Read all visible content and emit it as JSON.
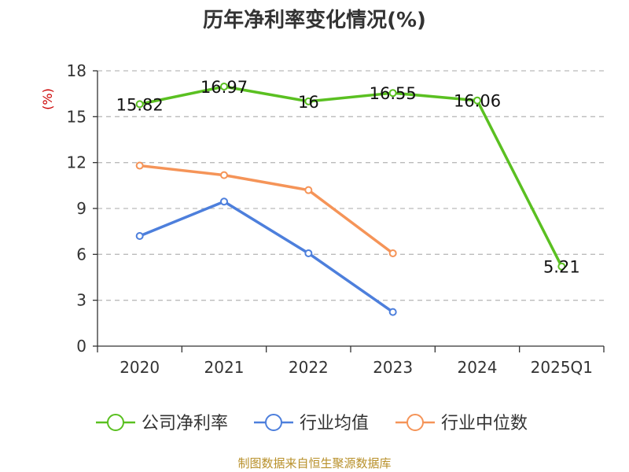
{
  "chart_data": {
    "type": "line",
    "title": "历年净利率变化情况(%)",
    "ylabel": "(%)",
    "xlabel": "",
    "categories": [
      "2020",
      "2021",
      "2022",
      "2023",
      "2024",
      "2025Q1"
    ],
    "ylim": [
      0,
      18
    ],
    "yticks": [
      0,
      3,
      6,
      9,
      12,
      15,
      18
    ],
    "grid": true,
    "legend_position": "bottom",
    "series": [
      {
        "name": "公司净利率",
        "color": "#5ac021",
        "values": [
          15.82,
          16.97,
          16,
          16.55,
          16.06,
          5.21
        ],
        "labels": [
          "15.82",
          "16.97",
          "16",
          "16.55",
          "16.06",
          "5.21"
        ]
      },
      {
        "name": "行业均值",
        "color": "#4d7fdc",
        "values": [
          7.2,
          9.45,
          6.07,
          2.23,
          null,
          null
        ]
      },
      {
        "name": "行业中位数",
        "color": "#f59458",
        "values": [
          11.8,
          11.18,
          10.2,
          6.07,
          null,
          null
        ]
      }
    ],
    "ylabel_color": "#cc0000",
    "source": "制图数据来自恒生聚源数据库",
    "source_color": "#b8902a"
  }
}
